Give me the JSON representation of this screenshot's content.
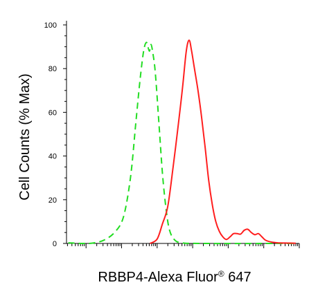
{
  "chart_data": {
    "type": "line",
    "title": "",
    "ylabel": "Cell Counts (% Max)",
    "xlabel": {
      "main": "RBBP4-Alexa Fluor",
      "superscript": "®",
      "suffix": " 647"
    },
    "ylim": [
      0,
      100
    ],
    "y_ticks": [
      "0",
      "20",
      "40",
      "60",
      "80",
      "100"
    ],
    "x_scale": "log",
    "x_decades": [
      1,
      2,
      3,
      4,
      5,
      6,
      7
    ],
    "grid": false,
    "legend": "none",
    "series": [
      {
        "style": "dashed",
        "color": "#22dd22",
        "points": [
          [
            0.5,
            0.3
          ],
          [
            0.9,
            0
          ],
          [
            1.2,
            0.2
          ],
          [
            1.5,
            1.5
          ],
          [
            1.8,
            5
          ],
          [
            2.05,
            12
          ],
          [
            2.25,
            30
          ],
          [
            2.4,
            55
          ],
          [
            2.52,
            75
          ],
          [
            2.62,
            88
          ],
          [
            2.7,
            92
          ],
          [
            2.78,
            88
          ],
          [
            2.83,
            91
          ],
          [
            2.88,
            87
          ],
          [
            2.95,
            78
          ],
          [
            3.05,
            55
          ],
          [
            3.15,
            32
          ],
          [
            3.25,
            16
          ],
          [
            3.35,
            6
          ],
          [
            3.5,
            1.5
          ],
          [
            3.7,
            0.3
          ],
          [
            4.2,
            0
          ],
          [
            6.9,
            0
          ]
        ]
      },
      {
        "style": "solid",
        "color": "#ff1e1e",
        "points": [
          [
            2.8,
            0
          ],
          [
            3.0,
            2
          ],
          [
            3.15,
            9
          ],
          [
            3.3,
            17
          ],
          [
            3.45,
            35
          ],
          [
            3.6,
            55
          ],
          [
            3.72,
            72
          ],
          [
            3.82,
            88
          ],
          [
            3.9,
            93
          ],
          [
            3.97,
            88
          ],
          [
            4.05,
            80
          ],
          [
            4.15,
            70
          ],
          [
            4.25,
            58
          ],
          [
            4.35,
            44
          ],
          [
            4.45,
            29
          ],
          [
            4.55,
            18
          ],
          [
            4.65,
            10
          ],
          [
            4.75,
            5.5
          ],
          [
            4.85,
            3
          ],
          [
            4.95,
            1.8
          ],
          [
            5.05,
            3
          ],
          [
            5.15,
            4.5
          ],
          [
            5.25,
            4.5
          ],
          [
            5.35,
            4.3
          ],
          [
            5.45,
            6
          ],
          [
            5.55,
            6.5
          ],
          [
            5.65,
            5
          ],
          [
            5.75,
            4
          ],
          [
            5.85,
            4.5
          ],
          [
            5.95,
            3
          ],
          [
            6.05,
            1.5
          ],
          [
            6.2,
            0.7
          ],
          [
            6.4,
            0.3
          ],
          [
            6.6,
            0.2
          ],
          [
            6.9,
            0.1
          ]
        ]
      }
    ]
  }
}
